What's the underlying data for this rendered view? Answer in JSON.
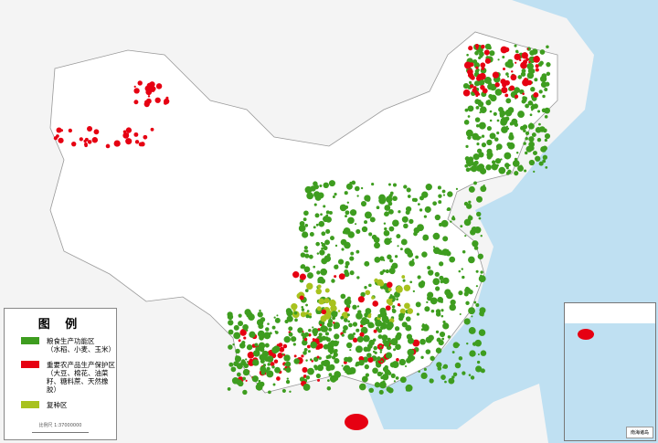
{
  "colors": {
    "grain": "#3e9d1f",
    "important": "#e60012",
    "multi_crop": "#a8c21e",
    "sea": "#bfe0f2",
    "land": "#f2f2f2"
  },
  "legend": {
    "title": "图 例",
    "items": [
      {
        "label": "粮食生产功能区",
        "sub": "（水稻、小麦、玉米）",
        "color": "#3e9d1f"
      },
      {
        "label": "重要农产品生产保护区",
        "sub": "（大豆、棉花、油菜籽、糖料蔗、天然橡胶）",
        "color": "#e60012"
      },
      {
        "label": "复种区",
        "sub": "",
        "color": "#a8c21e"
      }
    ],
    "scale": "比例尺  1:37000000"
  },
  "inset": {
    "title": "南海诸岛"
  }
}
